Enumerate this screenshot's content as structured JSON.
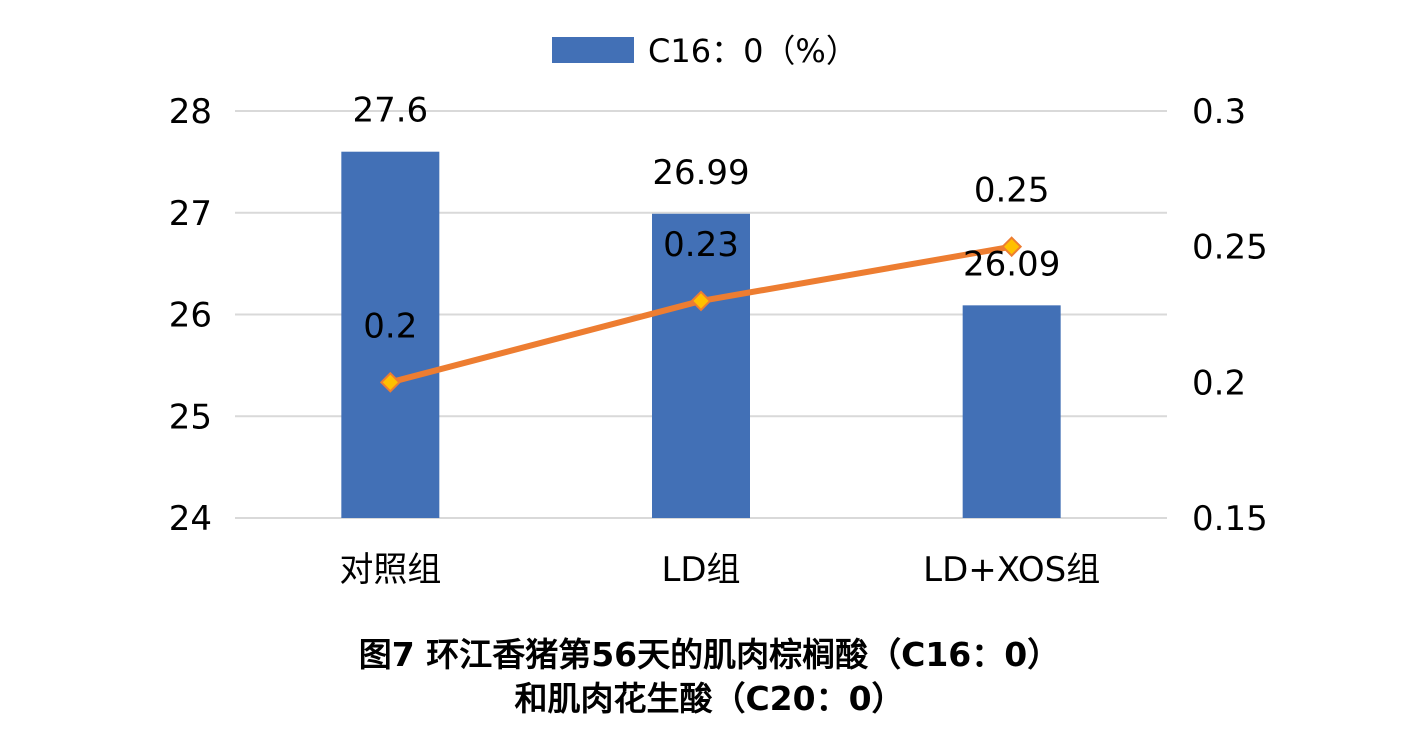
{
  "chart_data": {
    "type": "bar+line",
    "categories": [
      "对照组",
      "LD组",
      "LD+XOS组"
    ],
    "series": [
      {
        "name": "C16：0（%）",
        "type": "bar",
        "axis": "left",
        "values": [
          27.6,
          26.99,
          26.09
        ],
        "value_labels": [
          "27.6",
          "26.99",
          "26.09"
        ],
        "color": "#4270B6"
      },
      {
        "type": "line",
        "axis": "right",
        "values": [
          0.2,
          0.23,
          0.25
        ],
        "value_labels": [
          "0.2",
          "0.23",
          "0.25"
        ],
        "color": "#ED7D31",
        "marker_color": "#FFC000"
      }
    ],
    "y_left": {
      "range": [
        24,
        28
      ],
      "ticks": [
        "24",
        "25",
        "26",
        "27",
        "28"
      ]
    },
    "y_right": {
      "range": [
        0.15,
        0.3
      ],
      "ticks": [
        "0.15",
        "0.2",
        "0.25",
        "0.3"
      ]
    },
    "grid": true,
    "legend": "top-center",
    "title_lines": [
      "图7 环江香猪第56天的肌肉棕榈酸（C16：0）",
      "和肌肉花生酸（C20：0）"
    ]
  }
}
